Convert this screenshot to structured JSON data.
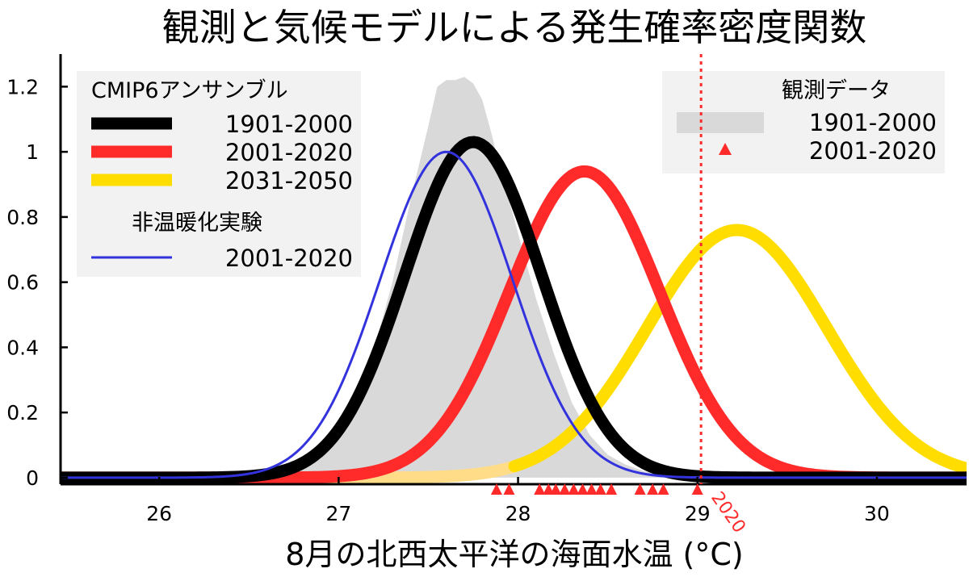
{
  "chart_data": {
    "type": "line",
    "title": "観測と気候モデルによる発生確率密度関数",
    "xlabel": "8月の北西太平洋の海面水温 (°C)",
    "ylabel": "",
    "xlim": [
      25.45,
      30.5
    ],
    "ylim": [
      -0.02,
      1.3
    ],
    "x_ticks": [
      "26",
      "27",
      "28",
      "29",
      "30"
    ],
    "y_ticks": [
      "0",
      "0.2",
      "0.4",
      "0.6",
      "0.8",
      "1",
      "1.2"
    ],
    "grid": false,
    "legend_left": {
      "title": "CMIP6アンサンブル",
      "entries": [
        "1901-2000",
        "2001-2020",
        "2031-2050"
      ],
      "subtitle": "非温暖化実験",
      "sub_entries": [
        "2001-2020"
      ]
    },
    "legend_right": {
      "title": "観測データ",
      "entries": [
        "1901-2000",
        "2001-2020"
      ]
    },
    "vline": {
      "x": 29.02,
      "label": "2020",
      "color": "#ff2b2b"
    },
    "series": [
      {
        "name": "1901-2000",
        "group": "CMIP6アンサンブル",
        "kind": "gaussian",
        "mean": 27.75,
        "peak": 1.03,
        "sd": 0.38,
        "color": "#000000",
        "width": 15
      },
      {
        "name": "2001-2020",
        "group": "CMIP6アンサンブル",
        "kind": "gaussian",
        "mean": 28.37,
        "peak": 0.94,
        "sd": 0.42,
        "color": "#ff2b2b",
        "width": 15
      },
      {
        "name": "2031-2050",
        "group": "CMIP6アンサンブル",
        "kind": "gaussian",
        "mean": 29.22,
        "peak": 0.76,
        "sd": 0.5,
        "color": "#ffdd00",
        "width": 15,
        "faded_below_x": 27.98,
        "faded_color": "#ffdd88"
      },
      {
        "name": "2001-2020",
        "group": "非温暖化実験",
        "kind": "gaussian",
        "mean": 27.6,
        "peak": 1.0,
        "sd": 0.37,
        "color": "#3333dd",
        "width": 3
      }
    ],
    "observed_density": {
      "name": "1901-2000",
      "color": "#d9d9d9",
      "x": [
        26.4,
        26.7,
        26.9,
        27.0,
        27.1,
        27.2,
        27.3,
        27.4,
        27.5,
        27.55,
        27.6,
        27.65,
        27.7,
        27.75,
        27.8,
        27.85,
        27.9,
        28.0,
        28.1,
        28.2,
        28.3,
        28.4,
        28.5,
        28.6,
        28.7,
        28.8,
        28.95
      ],
      "y": [
        0.0,
        0.02,
        0.06,
        0.12,
        0.22,
        0.4,
        0.6,
        0.85,
        1.08,
        1.2,
        1.22,
        1.22,
        1.23,
        1.21,
        1.16,
        1.06,
        0.95,
        0.75,
        0.55,
        0.38,
        0.23,
        0.13,
        0.07,
        0.04,
        0.02,
        0.01,
        0.0
      ]
    },
    "observed_years": {
      "name": "2001-2020",
      "color": "#ff2b2b",
      "x": [
        27.88,
        27.95,
        28.12,
        28.17,
        28.21,
        28.26,
        28.31,
        28.36,
        28.41,
        28.46,
        28.52,
        28.68,
        28.75,
        28.81,
        29.0
      ]
    }
  }
}
